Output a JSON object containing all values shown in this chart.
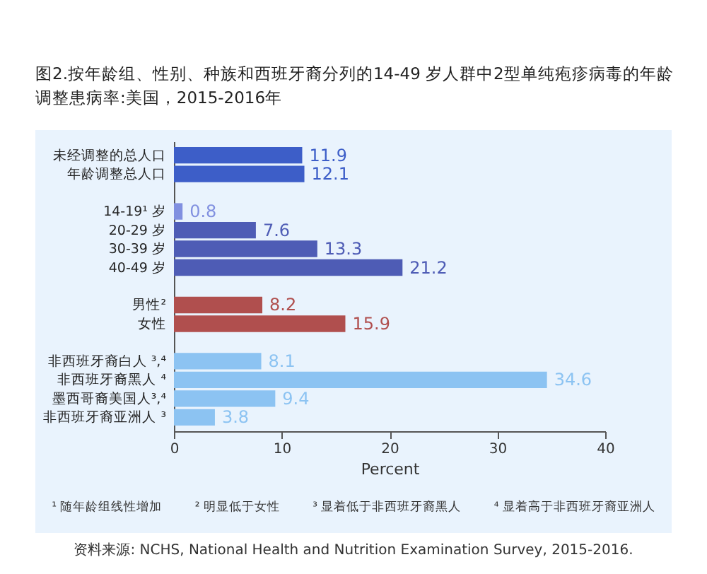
{
  "chart_data": {
    "type": "bar",
    "orientation": "horizontal",
    "title": "图2.按年龄组、性别、种族和西班牙裔分列的14-49 岁人群中2型单纯疱疹病毒的年龄调整患病率:美国，2015-2016年",
    "xlabel": "Percent",
    "categories": [
      "未经调整的总人口",
      "年龄调整总人口",
      null,
      "14-19¹ 岁",
      "20-29 岁",
      "30-39 岁",
      "40-49 岁",
      null,
      "男性²",
      "女性",
      null,
      "非西班牙裔白人 ³,⁴",
      "非西班牙裔黑人 ⁴",
      "墨西哥裔美国人³,⁴",
      "非西班牙裔亚洲人 ³"
    ],
    "values": [
      11.9,
      12.1,
      null,
      0.8,
      7.6,
      13.3,
      21.2,
      null,
      8.2,
      15.9,
      null,
      8.1,
      34.6,
      9.4,
      3.8
    ],
    "colors": [
      "#3d5ec8",
      "#3d5ec8",
      null,
      "#8190e0",
      "#4e5cb5",
      "#4e5cb5",
      "#4e5cb5",
      null,
      "#b04f4e",
      "#b04f4e",
      null,
      "#8cc3f2",
      "#8cc3f2",
      "#8cc3f2",
      "#8cc3f2"
    ],
    "data_labels": true,
    "xlim": [
      0,
      40
    ],
    "xticks": [
      0,
      10,
      20,
      30,
      40
    ],
    "grid": false,
    "legend": false,
    "annotations": [
      "¹ 随年龄组线性增加",
      "² 明显低于女性",
      "³ 显着低于非西班牙裔黑人",
      "⁴ 显着高于非西班牙裔亚洲人",
      "资料来源: NCHS, National Health and Nutrition Examination Survey, 2015-2016."
    ]
  }
}
